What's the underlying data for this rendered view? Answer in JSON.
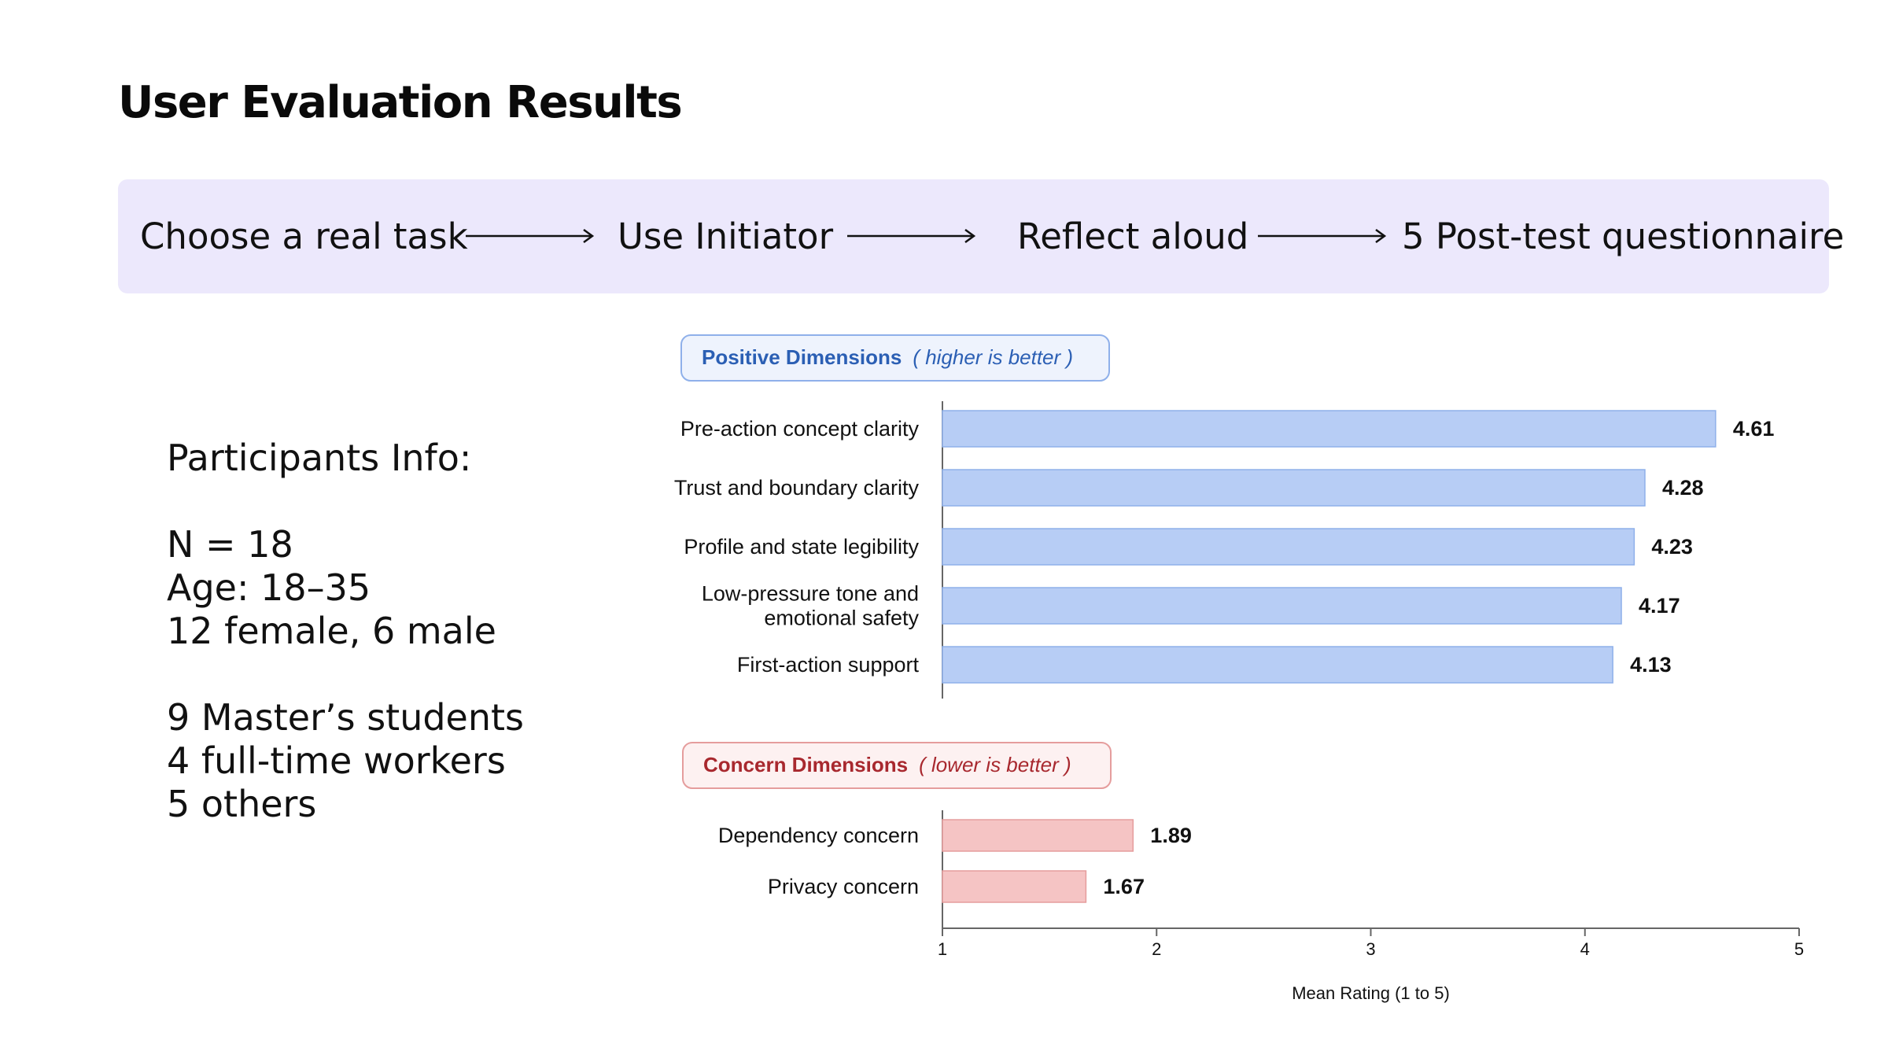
{
  "title": "User Evaluation Results",
  "flow": {
    "steps": [
      "Choose a real task",
      "Use Initiator",
      "Reflect aloud",
      "5 Post-test questionnaire"
    ]
  },
  "participants": {
    "heading": "Participants Info:",
    "n": "N = 18",
    "age": "Age: 18–35",
    "gender": "12 female, 6 male",
    "occupations": [
      "9 Master’s students",
      "4 full-time workers",
      "5 others"
    ]
  },
  "colors": {
    "banner_bg": "#ece8fc",
    "positive_bar": "#b7cdf5",
    "positive_bar_stroke": "#8fb0ea",
    "positive_title": "#2b5fb4",
    "positive_pill_bg": "#eef3fd",
    "concern_bar": "#f5c4c4",
    "concern_bar_stroke": "#e59d9d",
    "concern_title": "#a8282e",
    "concern_pill_bg": "#fdf1f1"
  },
  "chart_data": {
    "type": "bar",
    "orientation": "horizontal",
    "xlabel": "Mean Rating (1 to 5)",
    "xlim": [
      1,
      5
    ],
    "xticks": [
      "1",
      "2",
      "3",
      "4",
      "5"
    ],
    "grid": false,
    "groups": [
      {
        "name": "Positive Dimensions",
        "note": "( higher is better )",
        "categories": [
          "Pre-action concept clarity",
          "Trust and boundary clarity",
          "Profile and state legibility",
          "Low-pressure tone and emotional safety",
          "First-action support"
        ],
        "category_lines": [
          [
            "Pre-action concept clarity"
          ],
          [
            "Trust and boundary clarity"
          ],
          [
            "Profile and state legibility"
          ],
          [
            "Low-pressure tone and",
            "emotional safety"
          ],
          [
            "First-action support"
          ]
        ],
        "values": [
          4.61,
          4.28,
          4.23,
          4.17,
          4.13
        ],
        "value_labels": [
          "4.61",
          "4.28",
          "4.23",
          "4.17",
          "4.13"
        ]
      },
      {
        "name": "Concern Dimensions",
        "note": "( lower is better )",
        "categories": [
          "Dependency concern",
          "Privacy concern"
        ],
        "category_lines": [
          [
            "Dependency concern"
          ],
          [
            "Privacy concern"
          ]
        ],
        "values": [
          1.89,
          1.67
        ],
        "value_labels": [
          "1.89",
          "1.67"
        ]
      }
    ]
  }
}
